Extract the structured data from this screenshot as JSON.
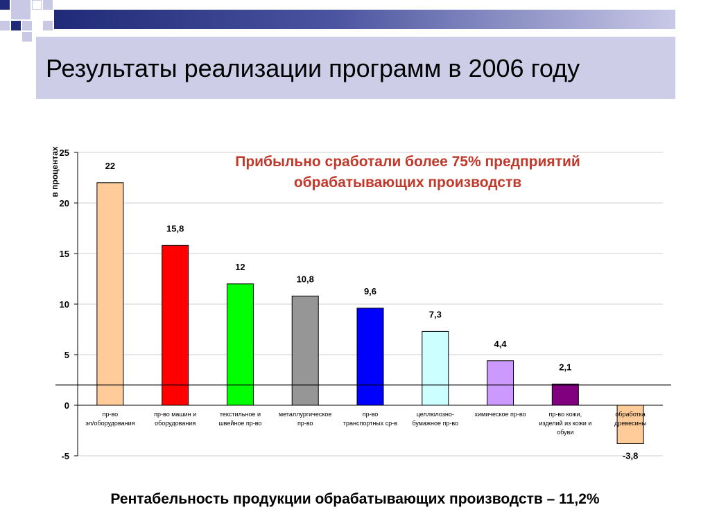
{
  "slide": {
    "title": "Результаты реализации программ в 2006 году",
    "footer": "Рентабельность продукции обрабатывающих производств – 11,2%",
    "accent_dark": "#1f2a78",
    "title_bg": "#cdcde8"
  },
  "chart_data": {
    "type": "bar",
    "title": "Прибыльно сработали более 75% предприятий обрабатывающих производств",
    "title_lines": [
      "Прибыльно сработали более 75% предприятий",
      "обрабатывающих производств"
    ],
    "ylabel": "в процентах",
    "xlabel": "",
    "ylim": [
      -5,
      25
    ],
    "yticks": [
      -5,
      0,
      5,
      10,
      15,
      20,
      25
    ],
    "grid": true,
    "reference_line": 2,
    "categories": [
      [
        "пр-во",
        "эл/оборудования"
      ],
      [
        "пр-во машин и",
        "оборудования"
      ],
      [
        "текстильное и",
        "швейное пр-во"
      ],
      [
        "металлургическое",
        "пр-во"
      ],
      [
        "пр-во",
        "транспортных ср-в"
      ],
      [
        "целлюлозно-",
        "бумажное пр-во"
      ],
      [
        "химическое пр-во"
      ],
      [
        "пр-во кожи,",
        "изделий из кожи и",
        "обуви"
      ],
      [
        "обработка",
        "древесины"
      ]
    ],
    "values": [
      22,
      15.8,
      12,
      10.8,
      9.6,
      7.3,
      4.4,
      2.1,
      -3.8
    ],
    "value_labels": [
      "22",
      "15,8",
      "12",
      "10,8",
      "9,6",
      "7,3",
      "4,4",
      "2,1",
      "-3,8"
    ],
    "colors": [
      "#ffcc99",
      "#ff0000",
      "#00ff00",
      "#969696",
      "#0000ff",
      "#ccffff",
      "#cc99ff",
      "#800080",
      "#ffcc99"
    ],
    "title_color": "#c0392b"
  }
}
